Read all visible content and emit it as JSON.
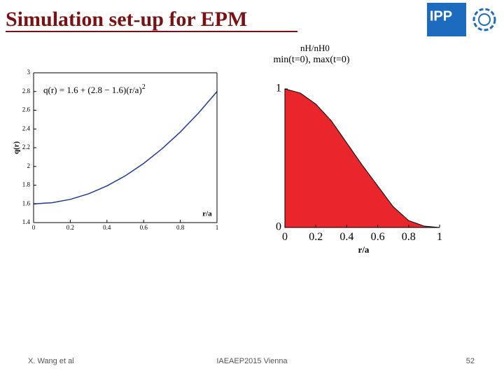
{
  "slide_title": "Simulation set-up for EPM",
  "logo": "IPP",
  "footer": {
    "author": "X. Wang et al",
    "event": "IAEAEP2015 Vienna",
    "page": "52"
  },
  "chart_data": [
    {
      "type": "line",
      "annotation": "q(r) = 1.6 + (2.8 − 1.6)(r/a)",
      "annotation_sup": "2",
      "x_label": "r/a",
      "y_label": "q(r)",
      "x": [
        0,
        0.1,
        0.2,
        0.3,
        0.4,
        0.5,
        0.6,
        0.7,
        0.8,
        0.9,
        1
      ],
      "series": [
        {
          "name": "q(r)",
          "color": "#1f3a9e",
          "values": [
            1.6,
            1.612,
            1.648,
            1.708,
            1.792,
            1.9,
            2.032,
            2.188,
            2.368,
            2.572,
            2.8
          ]
        }
      ],
      "xlim": [
        0,
        1
      ],
      "ylim": [
        1.4,
        3
      ],
      "xticks": [
        0,
        0.2,
        0.4,
        0.6,
        0.8,
        1
      ],
      "yticks": [
        1.4,
        1.6,
        1.8,
        2,
        2.2,
        2.4,
        2.6,
        2.8,
        3
      ]
    },
    {
      "type": "area",
      "title": "nH/nH0",
      "subtitle": "min(t=0), max(t=0)",
      "x_label": "r/a",
      "x": [
        0,
        0.1,
        0.2,
        0.3,
        0.4,
        0.5,
        0.6,
        0.7,
        0.8,
        0.9,
        1
      ],
      "series": [
        {
          "name": "nH/nH0",
          "color": "#e8262b",
          "values": [
            1,
            0.97,
            0.89,
            0.77,
            0.61,
            0.45,
            0.3,
            0.15,
            0.05,
            0.01,
            0
          ]
        }
      ],
      "xlim": [
        0,
        1
      ],
      "ylim": [
        0,
        1
      ],
      "xticks": [
        0,
        0.2,
        0.4,
        0.6,
        0.8,
        1
      ],
      "yticks": [
        0,
        1
      ]
    }
  ]
}
